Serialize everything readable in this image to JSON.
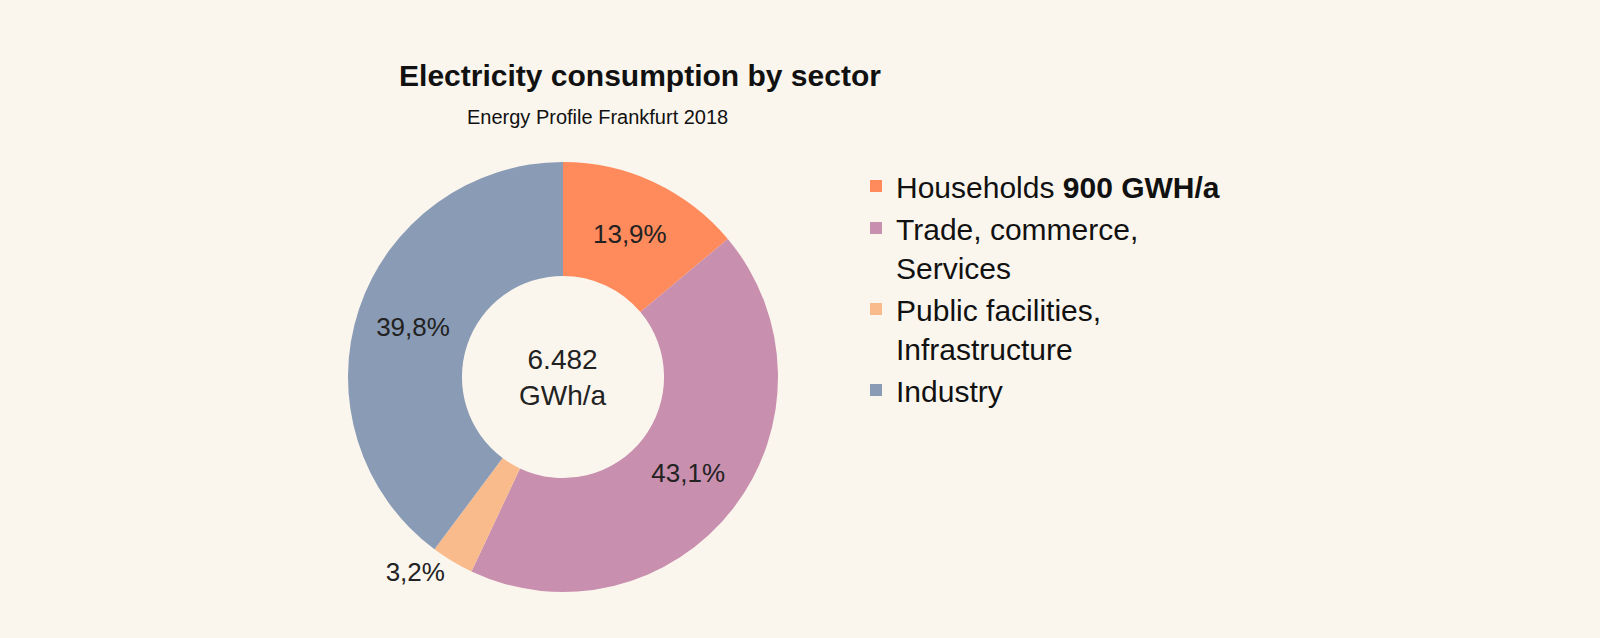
{
  "chart_data": {
    "type": "pie",
    "title": "Electricity consumption by sector",
    "subtitle": "Energy Profile Frankfurt 2018",
    "annotation": "6.482\nGWh/a",
    "categories": [
      "Households 900 GWH/a",
      "Trade, commerce,\nServices",
      "Public facilities,\nInfrastructure",
      "Industry"
    ],
    "values": [
      13.9,
      43.1,
      3.2,
      39.8
    ],
    "value_labels": [
      "13,9%",
      "43,1%",
      "3,2%",
      "39,8%"
    ],
    "colors": [
      "#FF8A5B",
      "#C98FAE",
      "#F9BB8C",
      "#8A9BB5"
    ],
    "data_labels": true,
    "legend": "right"
  }
}
